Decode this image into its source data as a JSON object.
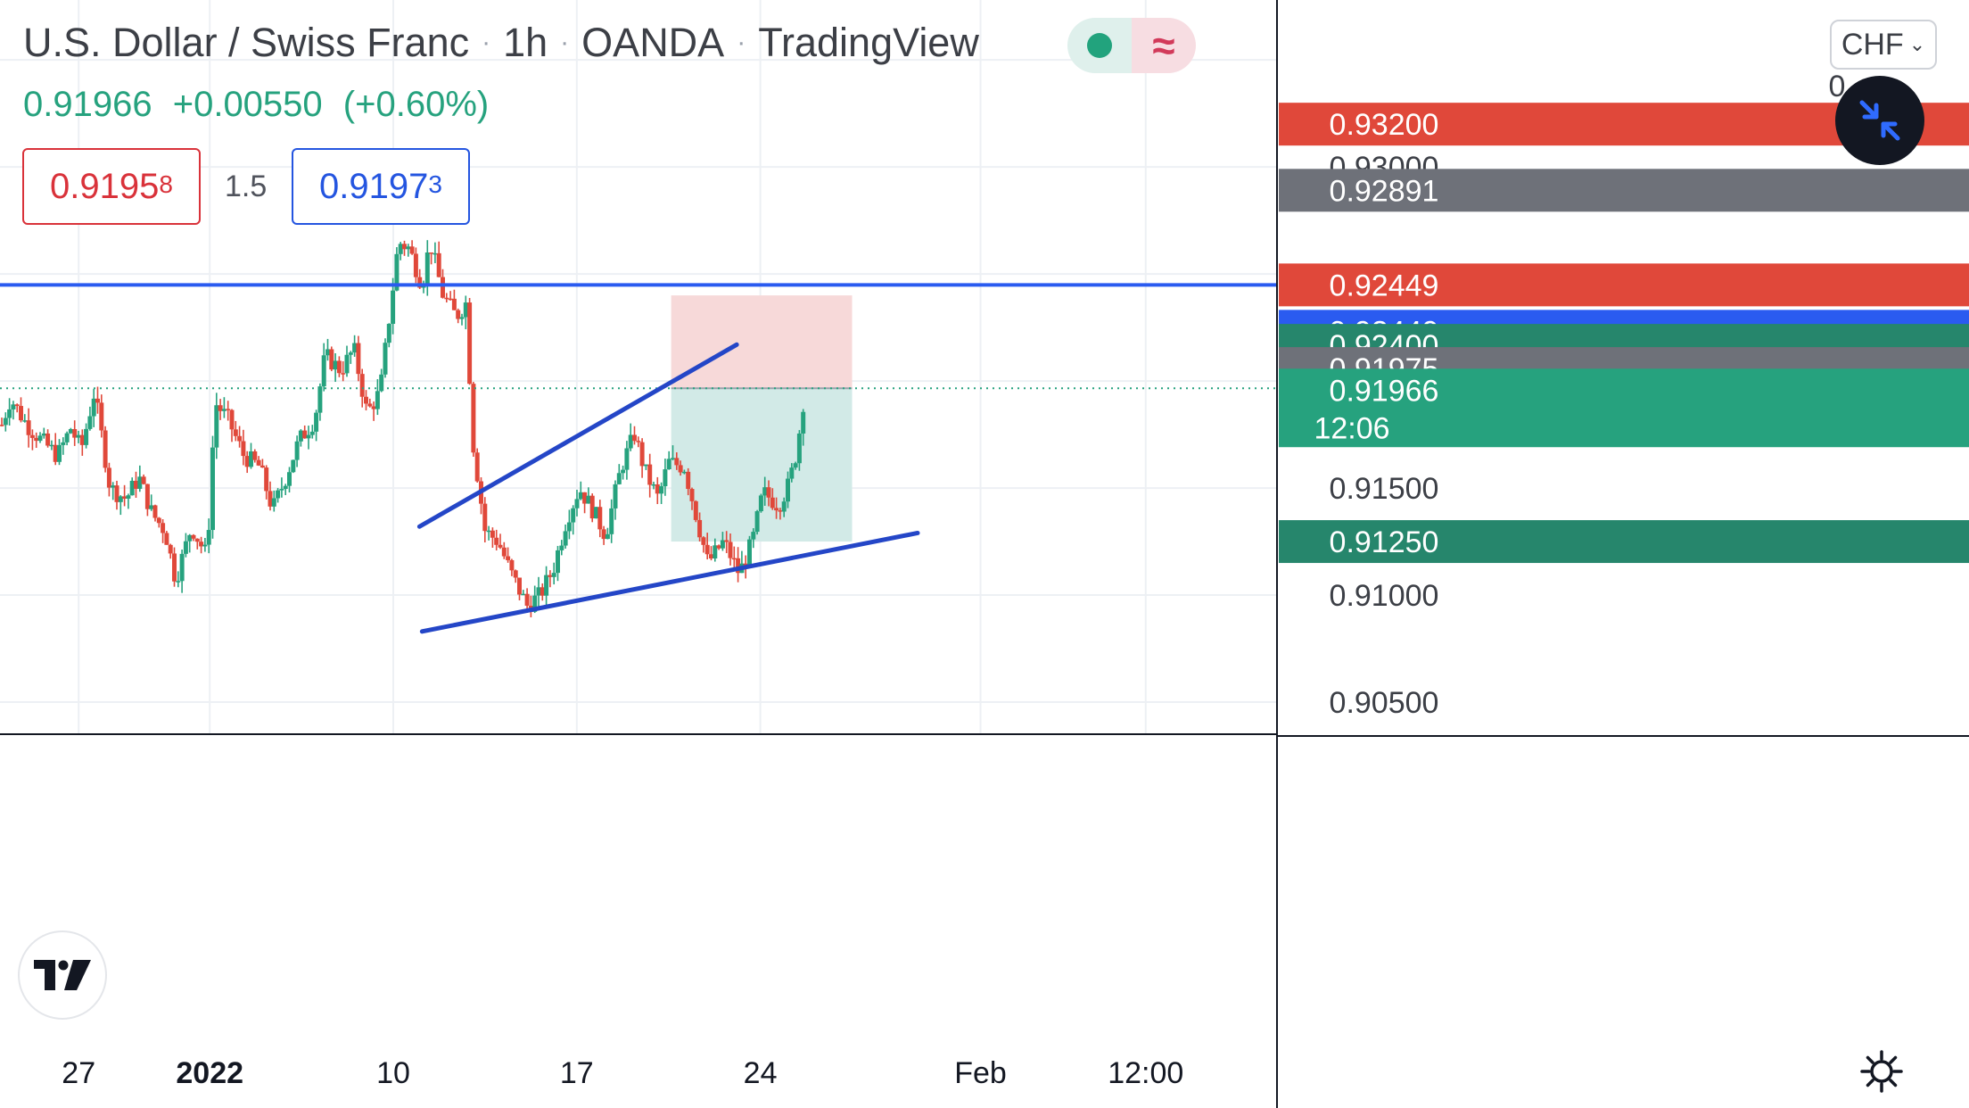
{
  "header": {
    "symbol_name": "U.S. Dollar / Swiss Franc",
    "interval": "1h",
    "broker": "OANDA",
    "platform": "TradingView",
    "separator": "·"
  },
  "quote": {
    "last": "0.91966",
    "change": "+0.00550",
    "change_pct": "(+0.60%)"
  },
  "trade_panel": {
    "sell_price_main": "0.9195",
    "sell_price_pip": "8",
    "spread": "1.5",
    "buy_price_main": "0.9197",
    "buy_price_pip": "3"
  },
  "currency_selector": {
    "value": "CHF",
    "chevron_icon": "chevron-down-icon"
  },
  "icons": {
    "collapse": "collapse-arrows-icon",
    "settings": "gear-icon",
    "logo": "tradingview-logo-icon",
    "live": "live-dot-icon",
    "wave": "wave-icon",
    "wave_glyph": "≈"
  },
  "chart_data": {
    "type": "candlestick",
    "y_axis": {
      "min": 0.9035,
      "max": 0.9378,
      "ticks": [
        "0.90500",
        "0.91000",
        "0.91500",
        "0.93000"
      ],
      "tick_values": [
        0.905,
        0.91,
        0.915,
        0.93
      ],
      "hidden_partial_tick": "0",
      "side": "right"
    },
    "x_axis": {
      "ticks": [
        "27",
        "2022",
        "10",
        "17",
        "24",
        "Feb",
        "12:00"
      ],
      "bold_ticks": [
        "2022"
      ]
    },
    "price_labels": [
      {
        "value": 0.932,
        "text": "0.93200",
        "color": "#e0483a"
      },
      {
        "value": 0.92891,
        "text": "0.92891",
        "color": "#6e7179"
      },
      {
        "value": 0.92449,
        "text": "0.92449",
        "color": "#e0483a"
      },
      {
        "value": 0.92449,
        "text": "0.92449",
        "color": "#2a5bf0",
        "offset_slot": 1
      },
      {
        "value": 0.924,
        "text": "0.92400",
        "color": "#26866c"
      },
      {
        "value": 0.91975,
        "text": "0.91975",
        "color": "#6e7179"
      },
      {
        "value": 0.91966,
        "text": "0.91966",
        "subtext": "12:06",
        "color": "#26a27e"
      },
      {
        "value": 0.9125,
        "text": "0.91250",
        "color": "#26866c"
      }
    ],
    "horizontal_line": {
      "value": 0.92449,
      "color": "#2a5bf0"
    },
    "last_price_line": {
      "value": 0.91966,
      "color": "#26a27e"
    },
    "trendlines": [
      {
        "from": {
          "day": 16.0,
          "price": 0.9132
        },
        "to": {
          "day": 28.1,
          "price": 0.9217
        }
      },
      {
        "from": {
          "day": 16.1,
          "price": 0.9083
        },
        "to": {
          "day": 35.0,
          "price": 0.9129
        }
      }
    ],
    "position": {
      "side": "short",
      "entry": 0.91966,
      "stop": 0.924,
      "target": 0.9125,
      "start_day": 25.6,
      "end_day": 32.5,
      "stop_color": "#f7d9d9",
      "target_color": "#d2eae7"
    },
    "session_markers": [
      {
        "day": 3.0,
        "label": "27"
      },
      {
        "day": 8.0,
        "label": "2022"
      },
      {
        "day": 15.0,
        "label": "10"
      },
      {
        "day": 22.0,
        "label": "17"
      },
      {
        "day": 29.0,
        "label": "24"
      },
      {
        "day": 37.4,
        "label": "Feb"
      },
      {
        "day": 43.7,
        "label": "12:00"
      }
    ],
    "colors": {
      "up": "#26a27e",
      "down": "#e0483a"
    },
    "path_points": [
      [
        0.0,
        0.9177
      ],
      [
        0.4,
        0.9192
      ],
      [
        1.0,
        0.918
      ],
      [
        1.6,
        0.9172
      ],
      [
        2.2,
        0.9165
      ],
      [
        2.7,
        0.9178
      ],
      [
        3.1,
        0.9168
      ],
      [
        3.6,
        0.9195
      ],
      [
        4.2,
        0.915
      ],
      [
        4.8,
        0.9145
      ],
      [
        5.3,
        0.9155
      ],
      [
        5.8,
        0.9138
      ],
      [
        6.3,
        0.913
      ],
      [
        6.7,
        0.9107
      ],
      [
        7.3,
        0.9132
      ],
      [
        7.9,
        0.9118
      ],
      [
        8.2,
        0.919
      ],
      [
        8.7,
        0.9182
      ],
      [
        9.3,
        0.9165
      ],
      [
        9.9,
        0.916
      ],
      [
        10.4,
        0.914
      ],
      [
        10.9,
        0.9155
      ],
      [
        11.4,
        0.9172
      ],
      [
        12.0,
        0.9182
      ],
      [
        12.4,
        0.9212
      ],
      [
        13.0,
        0.9205
      ],
      [
        13.5,
        0.9215
      ],
      [
        14.0,
        0.9185
      ],
      [
        14.5,
        0.9195
      ],
      [
        14.8,
        0.9225
      ],
      [
        15.2,
        0.9265
      ],
      [
        15.6,
        0.9262
      ],
      [
        16.1,
        0.9245
      ],
      [
        16.4,
        0.9265
      ],
      [
        16.9,
        0.924
      ],
      [
        17.4,
        0.923
      ],
      [
        17.8,
        0.9237
      ],
      [
        18.0,
        0.9175
      ],
      [
        18.5,
        0.913
      ],
      [
        19.0,
        0.9125
      ],
      [
        19.5,
        0.911
      ],
      [
        20.1,
        0.9095
      ],
      [
        20.6,
        0.91
      ],
      [
        21.1,
        0.9112
      ],
      [
        21.6,
        0.9135
      ],
      [
        22.1,
        0.915
      ],
      [
        22.6,
        0.914
      ],
      [
        23.1,
        0.9128
      ],
      [
        23.7,
        0.916
      ],
      [
        24.2,
        0.9175
      ],
      [
        24.6,
        0.9158
      ],
      [
        25.1,
        0.9145
      ],
      [
        25.5,
        0.9162
      ],
      [
        26.1,
        0.916
      ],
      [
        26.5,
        0.914
      ],
      [
        27.0,
        0.9115
      ],
      [
        27.6,
        0.9125
      ],
      [
        28.2,
        0.911
      ],
      [
        28.7,
        0.9125
      ],
      [
        29.1,
        0.9148
      ],
      [
        29.7,
        0.9142
      ],
      [
        30.1,
        0.9152
      ],
      [
        30.4,
        0.9168
      ],
      [
        30.7,
        0.9196
      ]
    ]
  }
}
